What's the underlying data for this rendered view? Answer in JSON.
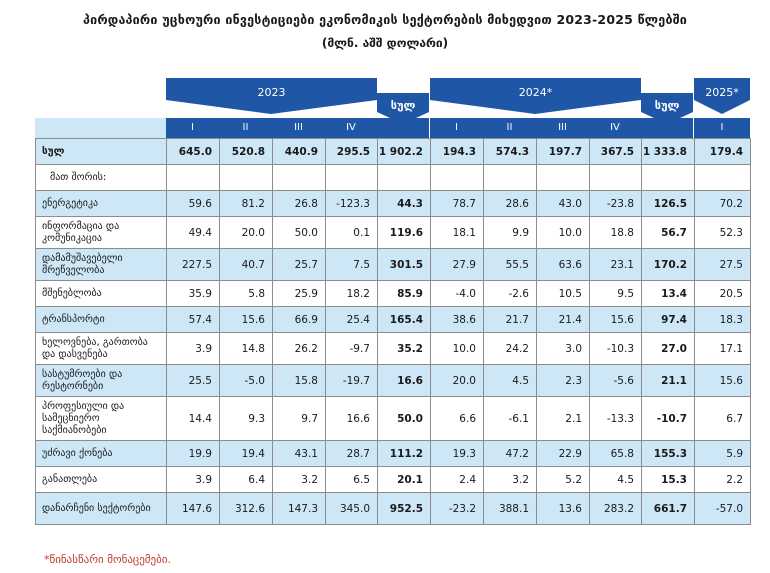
{
  "title": "პირდაპირი უცხოური ინვესტიციები ეკონომიკის სექტორების მიხედვით 2023-2025 წლებში",
  "subtitle": "(მლნ. აშშ დოლარი)",
  "header": {
    "y2023": "2023",
    "y2024": "2024*",
    "y2025": "2025*",
    "total": "სულ",
    "q2023": [
      "I",
      "II",
      "III",
      "IV"
    ],
    "q2024": [
      "I",
      "II",
      "III",
      "IV"
    ],
    "q2025": [
      "I"
    ]
  },
  "rows": [
    {
      "label": "სულ",
      "v": [
        "645.0",
        "520.8",
        "440.9",
        "295.5",
        "1 902.2",
        "194.3",
        "574.3",
        "197.7",
        "367.5",
        "1 333.8",
        "179.4"
      ]
    },
    {
      "label": "მათ შორის:",
      "v": [
        "",
        "",
        "",
        "",
        "",
        "",
        "",
        "",
        "",
        "",
        ""
      ]
    },
    {
      "label": "ენერგეტიკა",
      "v": [
        "59.6",
        "81.2",
        "26.8",
        "-123.3",
        "44.3",
        "78.7",
        "28.6",
        "43.0",
        "-23.8",
        "126.5",
        "70.2"
      ]
    },
    {
      "label": "ინფორმაცია და კომუნიკაცია",
      "v": [
        "49.4",
        "20.0",
        "50.0",
        "0.1",
        "119.6",
        "18.1",
        "9.9",
        "10.0",
        "18.8",
        "56.7",
        "52.3"
      ]
    },
    {
      "label": "დამამუშავებელი მრეწველობა",
      "v": [
        "227.5",
        "40.7",
        "25.7",
        "7.5",
        "301.5",
        "27.9",
        "55.5",
        "63.6",
        "23.1",
        "170.2",
        "27.5"
      ]
    },
    {
      "label": "მშენებლობა",
      "v": [
        "35.9",
        "5.8",
        "25.9",
        "18.2",
        "85.9",
        "-4.0",
        "-2.6",
        "10.5",
        "9.5",
        "13.4",
        "20.5"
      ]
    },
    {
      "label": "ტრანსპორტი",
      "v": [
        "57.4",
        "15.6",
        "66.9",
        "25.4",
        "165.4",
        "38.6",
        "21.7",
        "21.4",
        "15.6",
        "97.4",
        "18.3"
      ]
    },
    {
      "label": "ხელოვნება, გართობა და დასვენება",
      "v": [
        "3.9",
        "14.8",
        "26.2",
        "-9.7",
        "35.2",
        "10.0",
        "24.2",
        "3.0",
        "-10.3",
        "27.0",
        "17.1"
      ]
    },
    {
      "label": "სასტუმროები და რესტორნები",
      "v": [
        "25.5",
        "-5.0",
        "15.8",
        "-19.7",
        "16.6",
        "20.0",
        "4.5",
        "2.3",
        "-5.6",
        "21.1",
        "15.6"
      ]
    },
    {
      "label": "პროფესიული და სამეცნიერო საქმიანობები",
      "v": [
        "14.4",
        "9.3",
        "9.7",
        "16.6",
        "50.0",
        "6.6",
        "-6.1",
        "2.1",
        "-13.3",
        "-10.7",
        "6.7"
      ]
    },
    {
      "label": "უძრავი ქონება",
      "v": [
        "19.9",
        "19.4",
        "43.1",
        "28.7",
        "111.2",
        "19.3",
        "47.2",
        "22.9",
        "65.8",
        "155.3",
        "5.9"
      ]
    },
    {
      "label": "განათლება",
      "v": [
        "3.9",
        "6.4",
        "3.2",
        "6.5",
        "20.1",
        "2.4",
        "3.2",
        "5.2",
        "4.5",
        "15.3",
        "2.2"
      ]
    },
    {
      "label": "დანარჩენი სექტორები",
      "v": [
        "147.6",
        "312.6",
        "147.3",
        "345.0",
        "952.5",
        "-23.2",
        "388.1",
        "13.6",
        "283.2",
        "661.7",
        "-57.0"
      ]
    }
  ],
  "note": "*წინასწარი მონაცემები.",
  "colors": {
    "header": "#1f56a5",
    "row_blue": "#cde7f7",
    "note": "#c0392b"
  }
}
